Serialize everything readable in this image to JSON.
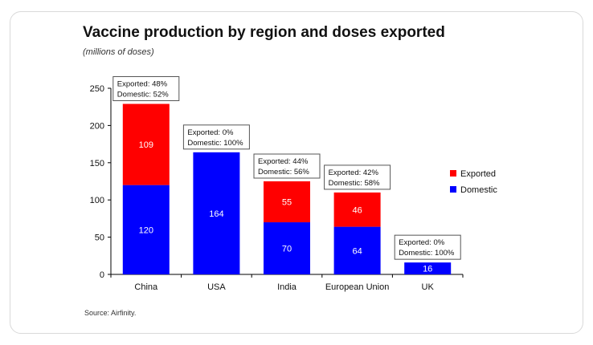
{
  "title": "Vaccine production by region and doses exported",
  "subtitle": "(millions of doses)",
  "source": "Source: Airfinity.",
  "colors": {
    "exported": "#ff0000",
    "domestic": "#0000ff"
  },
  "chart_data": {
    "type": "bar",
    "stacked": true,
    "title": "Vaccine production by region and doses exported",
    "subtitle": "(millions of doses)",
    "categories": [
      "China",
      "USA",
      "India",
      "European Union",
      "UK"
    ],
    "series": [
      {
        "name": "Domestic",
        "color": "#0000ff",
        "values": [
          120,
          164,
          70,
          64,
          16
        ]
      },
      {
        "name": "Exported",
        "color": "#ff0000",
        "values": [
          109,
          0,
          55,
          46,
          0
        ]
      }
    ],
    "annotations": [
      {
        "category": "China",
        "lines": [
          "Exported: 48%",
          "Domestic: 52%"
        ]
      },
      {
        "category": "USA",
        "lines": [
          "Exported: 0%",
          "Domestic: 100%"
        ]
      },
      {
        "category": "India",
        "lines": [
          "Exported: 44%",
          "Domestic: 56%"
        ]
      },
      {
        "category": "European Union",
        "lines": [
          "Exported: 42%",
          "Domestic: 58%"
        ]
      },
      {
        "category": "UK",
        "lines": [
          "Exported: 0%",
          "Domestic: 100%"
        ]
      }
    ],
    "yticks": [
      0,
      50,
      100,
      150,
      200,
      250
    ],
    "ylim": [
      0,
      250
    ],
    "grid": false,
    "legend": {
      "position": "right",
      "entries": [
        "Exported",
        "Domestic"
      ]
    }
  }
}
